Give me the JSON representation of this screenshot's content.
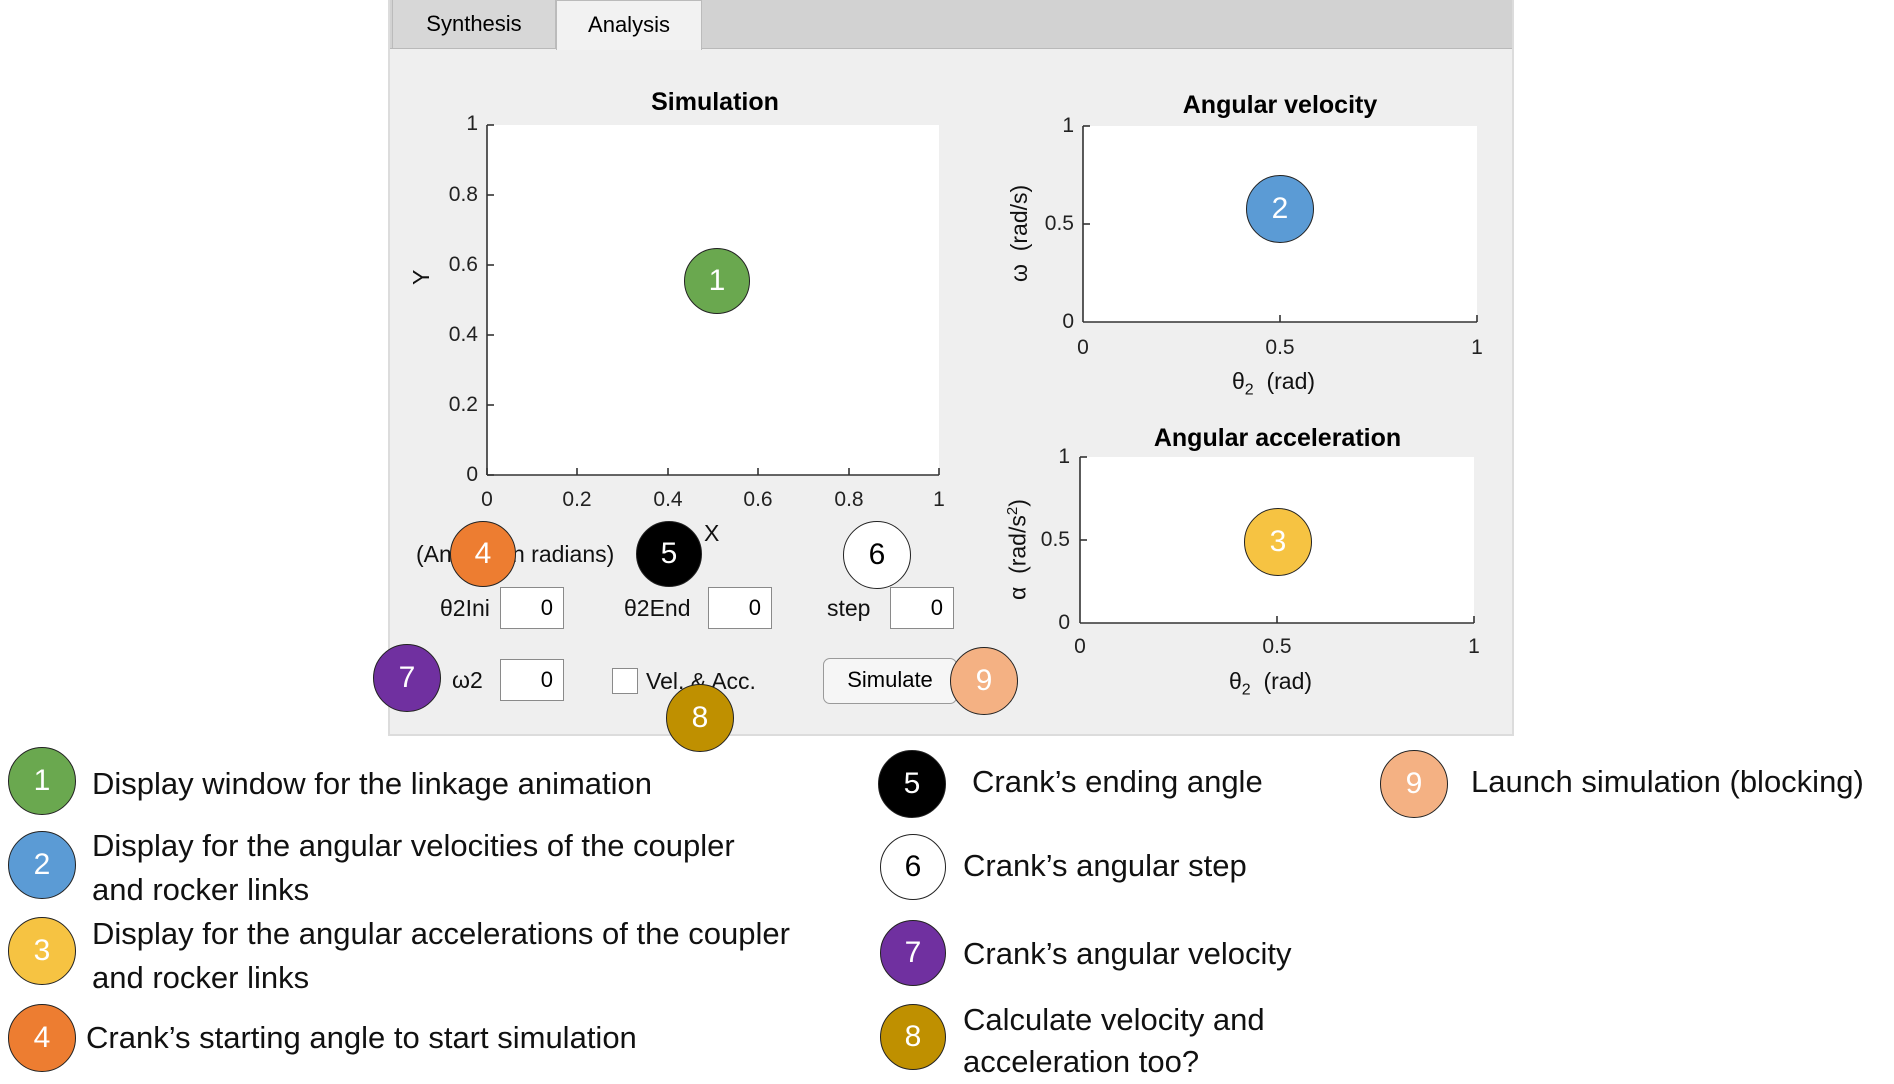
{
  "tabs": [
    {
      "label": "Synthesis"
    },
    {
      "label": "Analysis"
    }
  ],
  "simulation_plot": {
    "title": "Simulation",
    "xlabel": "X",
    "ylabel": "Y",
    "xticks": [
      "0",
      "0.2",
      "0.4",
      "0.6",
      "0.8",
      "1"
    ],
    "yticks": [
      "0",
      "0.2",
      "0.4",
      "0.6",
      "0.8",
      "1"
    ]
  },
  "velocity_plot": {
    "title": "Angular velocity",
    "ylabel": "ω  (rad/s)",
    "xlabel_base": "θ",
    "xlabel_sub": "2",
    "xlabel_tail": "  (rad)",
    "xticks": [
      "0",
      "0.5",
      "1"
    ],
    "yticks": [
      "0",
      "0.5",
      "1"
    ]
  },
  "acceleration_plot": {
    "title": "Angular acceleration",
    "ylabel_base": "α  (rad/s",
    "ylabel_sup": "2",
    "ylabel_tail": ")",
    "xlabel_base": "θ",
    "xlabel_sub": "2",
    "xlabel_tail": "  (rad)",
    "xticks": [
      "0",
      "0.5",
      "1"
    ],
    "yticks": [
      "0",
      "0.5",
      "1"
    ]
  },
  "controls": {
    "angle_note_start": "(An",
    "angle_note_end": "n radians)",
    "theta2ini_label": "θ2Ini",
    "theta2ini_value": "0",
    "theta2end_label": "θ2End",
    "theta2end_value": "0",
    "step_label": "step",
    "step_value": "0",
    "omega2_label": "ω2",
    "omega2_value": "0",
    "vel_acc_label": "Vel. & Acc.",
    "simulate_label": "Simulate"
  },
  "markers": [
    {
      "num": "1",
      "color": "#6aa84f"
    },
    {
      "num": "2",
      "color": "#5b9bd5"
    },
    {
      "num": "3",
      "color": "#f6c342"
    },
    {
      "num": "4",
      "color": "#ed7d31"
    },
    {
      "num": "5",
      "color": "#000000"
    },
    {
      "num": "6",
      "color": "#ffffff"
    },
    {
      "num": "7",
      "color": "#7030a0"
    },
    {
      "num": "8",
      "color": "#bf9000"
    },
    {
      "num": "9",
      "color": "#f4b183"
    }
  ],
  "legend": [
    {
      "num": "1",
      "text": "Display window for the linkage animation"
    },
    {
      "num": "2",
      "line1": "Display for the angular velocities of the coupler",
      "line2": "and rocker links"
    },
    {
      "num": "3",
      "line1": "Display for the angular accelerations of the coupler",
      "line2": "and rocker links"
    },
    {
      "num": "4",
      "text": "Crank’s starting angle to start simulation"
    },
    {
      "num": "5",
      "text": "Crank’s ending angle"
    },
    {
      "num": "6",
      "text": "Crank’s angular step"
    },
    {
      "num": "7",
      "text": "Crank’s angular velocity"
    },
    {
      "num": "8",
      "line1": "Calculate velocity and",
      "line2": "acceleration too?"
    },
    {
      "num": "9",
      "text": "Launch simulation (blocking)"
    }
  ]
}
